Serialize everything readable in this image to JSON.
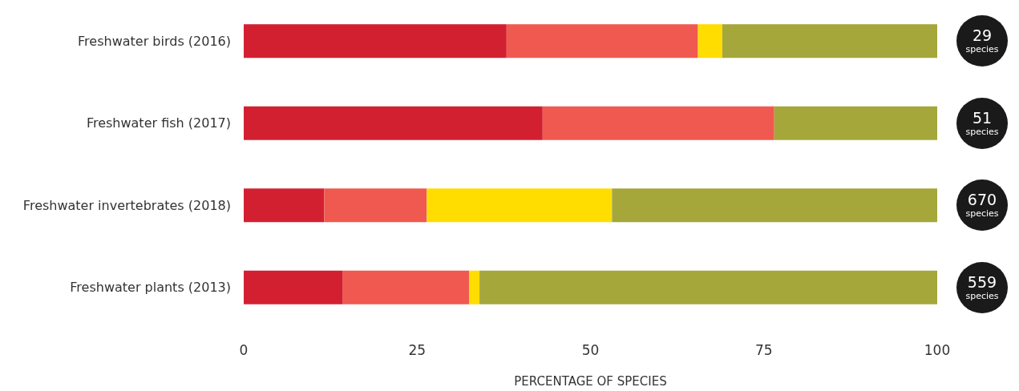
{
  "chart_data": {
    "type": "bar",
    "orientation": "horizontal",
    "stacked": true,
    "xlabel": "PERCENTAGE OF SPECIES",
    "categories": [
      "Freshwater birds (2016)",
      "Freshwater fish (2017)",
      "Freshwater invertebrates (2018)",
      "Freshwater plants (2013)"
    ],
    "series": [
      {
        "color": "#d32031",
        "values": [
          37.9,
          43.1,
          11.6,
          14.3
        ]
      },
      {
        "color": "#f0594f",
        "values": [
          27.6,
          33.4,
          14.8,
          18.2
        ]
      },
      {
        "color": "#ffdd00",
        "values": [
          3.5,
          0,
          26.7,
          1.5
        ]
      },
      {
        "color": "#a5a73a",
        "values": [
          31.0,
          23.5,
          46.9,
          66.0
        ]
      }
    ],
    "xlim": [
      0,
      100
    ],
    "xticks": [
      0,
      25,
      50,
      75,
      100
    ],
    "grid": false,
    "annotations": [
      "29 species",
      "51 species",
      "670 species",
      "559 species"
    ]
  }
}
